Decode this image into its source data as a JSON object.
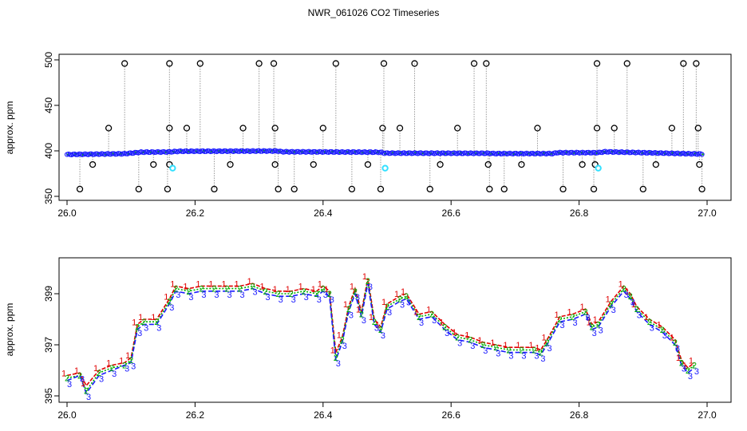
{
  "title": "NWR_061026  CO2 Timeseries",
  "colors": {
    "gray": "#9a9a9a",
    "blue": "#1a1aff",
    "green": "#00b000",
    "red": "#e00000",
    "cyan": "#33e0ff",
    "black": "#000000"
  },
  "chart_data": [
    {
      "type": "scatter",
      "ylabel": "approx. ppm",
      "xlim": [
        26.0,
        27.0
      ],
      "ylim": [
        345,
        500
      ],
      "x_ticks": [
        "26.0",
        "26.2",
        "26.4",
        "26.6",
        "26.8",
        "27.0"
      ],
      "y_ticks": [
        "350",
        "400",
        "450",
        "500"
      ],
      "grid": false,
      "baseline_segments": [
        {
          "x": [
            26.0,
            26.09,
            26.115,
            26.16,
            26.175,
            26.33,
            26.335,
            26.49,
            26.495,
            26.66,
            26.668,
            26.76,
            26.765,
            26.83,
            26.84,
            26.99
          ],
          "y": [
            396.0,
            396.8,
            398.5,
            398.8,
            399.5,
            399.8,
            399.0,
            398.5,
            397.5,
            397.3,
            397.0,
            397.0,
            398.0,
            398.0,
            399.0,
            396.5
          ]
        }
      ],
      "outliers_high": [
        26.09,
        26.16,
        26.208,
        26.3,
        26.323,
        26.42,
        26.495,
        26.543,
        26.636,
        26.655,
        26.828,
        26.875,
        26.963,
        26.983
      ],
      "outliers_425": [
        26.065,
        26.16,
        26.187,
        26.275,
        26.325,
        26.4,
        26.493,
        26.52,
        26.61,
        26.735,
        26.828,
        26.855,
        26.945,
        26.986
      ],
      "outliers_385": [
        26.04,
        26.135,
        26.16,
        26.255,
        26.325,
        26.385,
        26.47,
        26.583,
        26.658,
        26.71,
        26.805,
        26.825,
        26.92,
        26.988
      ],
      "outliers_358": [
        26.02,
        26.112,
        26.157,
        26.23,
        26.33,
        26.355,
        26.445,
        26.49,
        26.567,
        26.66,
        26.683,
        26.775,
        26.823,
        26.9,
        26.992
      ],
      "cyan_points": [
        {
          "x": 26.165,
          "y": 381
        },
        {
          "x": 26.497,
          "y": 381
        },
        {
          "x": 26.83,
          "y": 381
        }
      ]
    },
    {
      "type": "line",
      "ylabel": "approx. ppm",
      "xlim": [
        26.0,
        27.0
      ],
      "ylim": [
        394.7,
        400.4
      ],
      "x_ticks": [
        "26.0",
        "26.2",
        "26.4",
        "26.6",
        "26.8",
        "27.0"
      ],
      "y_ticks": [
        "395",
        "397",
        "399"
      ],
      "grid": false,
      "x": [
        26.0,
        26.02,
        26.03,
        26.05,
        26.07,
        26.09,
        26.1,
        26.11,
        26.12,
        26.14,
        26.16,
        26.17,
        26.19,
        26.21,
        26.23,
        26.25,
        26.27,
        26.29,
        26.31,
        26.33,
        26.35,
        26.37,
        26.39,
        26.4,
        26.41,
        26.42,
        26.43,
        26.44,
        26.45,
        26.46,
        26.47,
        26.48,
        26.49,
        26.5,
        26.52,
        26.53,
        26.55,
        26.57,
        26.59,
        26.61,
        26.63,
        26.65,
        26.67,
        26.69,
        26.71,
        26.73,
        26.74,
        26.75,
        26.77,
        26.79,
        26.81,
        26.82,
        26.83,
        26.85,
        26.87,
        26.88,
        26.89,
        26.91,
        26.93,
        26.95,
        26.96,
        26.97,
        26.98
      ],
      "series": [
        {
          "name": "1",
          "color": "#e00000",
          "values": [
            395.8,
            395.9,
            395.4,
            396.0,
            396.2,
            396.3,
            396.5,
            397.8,
            398.0,
            398.0,
            398.8,
            399.3,
            399.2,
            399.3,
            399.3,
            399.3,
            399.3,
            399.4,
            399.2,
            399.1,
            399.1,
            399.2,
            399.1,
            399.3,
            399.1,
            396.7,
            397.3,
            398.5,
            399.2,
            398.3,
            399.6,
            398.0,
            397.7,
            398.6,
            398.9,
            399.0,
            398.2,
            398.3,
            397.8,
            397.4,
            397.3,
            397.1,
            397.0,
            396.9,
            396.9,
            396.9,
            396.8,
            397.2,
            398.1,
            398.2,
            398.4,
            397.8,
            397.9,
            398.7,
            399.3,
            399.0,
            398.5,
            398.0,
            397.7,
            397.2,
            396.4,
            396.1,
            396.3
          ]
        },
        {
          "name": "2",
          "color": "#00b000",
          "values": [
            395.7,
            395.8,
            395.2,
            395.9,
            396.1,
            396.2,
            396.4,
            397.7,
            397.9,
            397.9,
            398.7,
            399.2,
            399.1,
            399.2,
            399.2,
            399.2,
            399.2,
            399.3,
            399.1,
            399.0,
            399.0,
            399.1,
            399.0,
            399.2,
            399.0,
            396.5,
            397.2,
            398.4,
            399.1,
            398.2,
            399.5,
            397.9,
            397.6,
            398.5,
            398.8,
            398.9,
            398.1,
            398.2,
            397.7,
            397.3,
            397.2,
            397.0,
            396.9,
            396.8,
            396.8,
            396.8,
            396.7,
            397.1,
            398.0,
            398.1,
            398.3,
            397.7,
            397.8,
            398.6,
            399.2,
            398.9,
            398.4,
            397.9,
            397.6,
            397.1,
            396.3,
            396.0,
            396.2
          ]
        },
        {
          "name": "3",
          "color": "#1a1aff",
          "values": [
            395.6,
            395.8,
            395.1,
            395.8,
            396.0,
            396.2,
            396.3,
            397.6,
            397.8,
            397.8,
            398.6,
            399.1,
            399.0,
            399.1,
            399.1,
            399.1,
            399.1,
            399.2,
            399.0,
            398.9,
            398.9,
            399.0,
            398.9,
            399.1,
            398.9,
            396.4,
            397.1,
            398.3,
            399.0,
            398.1,
            399.4,
            397.8,
            397.5,
            398.4,
            398.7,
            398.8,
            398.0,
            398.1,
            397.6,
            397.2,
            397.1,
            396.9,
            396.8,
            396.7,
            396.7,
            396.7,
            396.6,
            397.0,
            397.9,
            398.0,
            398.2,
            397.6,
            397.7,
            398.5,
            399.1,
            398.8,
            398.3,
            397.8,
            397.5,
            397.0,
            396.2,
            395.9,
            396.1
          ]
        }
      ]
    }
  ]
}
